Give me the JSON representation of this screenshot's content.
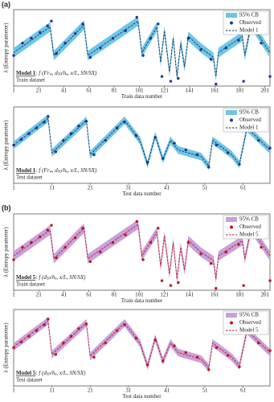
{
  "panel_labels": [
    "(a)",
    "(b)"
  ],
  "chart_data": [
    {
      "type": "line",
      "y_label": "λ (Entropy parameter)",
      "x_label": "Train data number",
      "annotation": {
        "model": "Model 1",
        "formula": [
          ": f (Fr",
          "w",
          ", d",
          "50",
          "/h",
          "s",
          ", x/L, SN/SX)"
        ],
        "dataset": "Train dataset"
      },
      "xlim": [
        1,
        205
      ],
      "xticks": [
        1,
        21,
        41,
        61,
        81,
        101,
        121,
        141,
        161,
        181,
        201
      ],
      "ylim": [
        0.1,
        0.9
      ],
      "legend": "upper right",
      "series": [
        {
          "name": "95% CB",
          "kind": "band",
          "color": "#6ec6e6",
          "x": [
            1,
            30,
            33,
            57,
            60,
            100,
            103,
            115,
            118,
            121,
            125,
            128,
            131,
            134,
            137,
            140,
            150,
            160,
            162,
            164,
            183,
            185,
            190,
            205
          ],
          "lower": [
            0.4,
            0.67,
            0.37,
            0.69,
            0.37,
            0.73,
            0.4,
            0.67,
            0.3,
            0.63,
            0.2,
            0.55,
            0.15,
            0.5,
            0.25,
            0.57,
            0.45,
            0.35,
            0.15,
            0.4,
            0.57,
            0.37,
            0.7,
            0.4
          ],
          "upper": [
            0.5,
            0.77,
            0.47,
            0.79,
            0.47,
            0.83,
            0.5,
            0.77,
            0.4,
            0.73,
            0.3,
            0.65,
            0.25,
            0.6,
            0.35,
            0.67,
            0.55,
            0.45,
            0.25,
            0.5,
            0.67,
            0.47,
            0.8,
            0.5
          ]
        },
        {
          "name": "Observed",
          "kind": "scatter",
          "color": "#1f3a93",
          "x": [
            1,
            8,
            15,
            22,
            28,
            31,
            35,
            42,
            50,
            56,
            62,
            70,
            80,
            90,
            99,
            104,
            110,
            116,
            119,
            126,
            132,
            140,
            150,
            158,
            162,
            170,
            180,
            184,
            190,
            198,
            205
          ],
          "values": [
            0.42,
            0.55,
            0.6,
            0.66,
            0.73,
            0.78,
            0.44,
            0.55,
            0.65,
            0.75,
            0.4,
            0.5,
            0.6,
            0.68,
            0.82,
            0.42,
            0.6,
            0.75,
            0.2,
            0.15,
            0.18,
            0.6,
            0.48,
            0.38,
            0.12,
            0.5,
            0.58,
            0.15,
            0.78,
            0.55,
            0.2
          ]
        },
        {
          "name": "Model 1",
          "kind": "line",
          "color": "#1a2a5a",
          "dash": true,
          "x": [
            1,
            30,
            33,
            57,
            60,
            100,
            103,
            115,
            118,
            121,
            125,
            128,
            131,
            134,
            137,
            140,
            150,
            160,
            162,
            164,
            183,
            185,
            190,
            205
          ],
          "values": [
            0.45,
            0.72,
            0.42,
            0.74,
            0.42,
            0.78,
            0.45,
            0.72,
            0.35,
            0.68,
            0.25,
            0.6,
            0.2,
            0.55,
            0.3,
            0.62,
            0.5,
            0.4,
            0.2,
            0.45,
            0.62,
            0.42,
            0.75,
            0.45
          ]
        }
      ]
    },
    {
      "type": "line",
      "y_label": "λ (Entropy parameter)",
      "x_label": "Test data number",
      "annotation": {
        "model": "Model 1",
        "formula": [
          ": f (Fr",
          "w",
          ", d",
          "50",
          "/h",
          "s",
          ", x/L, SN/SX)"
        ],
        "dataset": "Test dataset"
      },
      "xlim": [
        1,
        68
      ],
      "xticks": [
        1,
        11,
        21,
        31,
        41,
        51,
        61
      ],
      "ylim": [
        0.1,
        0.9
      ],
      "legend": "upper right",
      "series": [
        {
          "name": "95% CB",
          "kind": "band",
          "color": "#6ec6e6",
          "x": [
            1,
            10,
            11,
            20,
            21,
            30,
            34,
            36,
            38,
            40,
            42,
            44,
            50,
            52,
            53,
            58,
            60,
            62,
            68
          ],
          "lower": [
            0.46,
            0.74,
            0.38,
            0.72,
            0.36,
            0.72,
            0.51,
            0.26,
            0.56,
            0.31,
            0.51,
            0.41,
            0.34,
            0.24,
            0.51,
            0.36,
            0.26,
            0.64,
            0.41
          ],
          "upper": [
            0.54,
            0.82,
            0.46,
            0.8,
            0.44,
            0.8,
            0.59,
            0.34,
            0.64,
            0.39,
            0.59,
            0.49,
            0.42,
            0.32,
            0.59,
            0.44,
            0.34,
            0.72,
            0.49
          ]
        },
        {
          "name": "Observed",
          "kind": "scatter",
          "color": "#1f3a93",
          "x": [
            1,
            3,
            5,
            7,
            9,
            10,
            12,
            14,
            16,
            18,
            20,
            22,
            25,
            28,
            30,
            33,
            36,
            38,
            40,
            43,
            46,
            49,
            52,
            54,
            57,
            60,
            62,
            65,
            68
          ],
          "values": [
            0.5,
            0.56,
            0.62,
            0.68,
            0.74,
            0.8,
            0.43,
            0.55,
            0.62,
            0.7,
            0.75,
            0.4,
            0.55,
            0.68,
            0.74,
            0.6,
            0.32,
            0.58,
            0.36,
            0.52,
            0.45,
            0.4,
            0.27,
            0.5,
            0.42,
            0.3,
            0.68,
            0.55,
            0.47
          ]
        },
        {
          "name": "Model 1",
          "kind": "line",
          "color": "#1a2a5a",
          "dash": true,
          "x": [
            1,
            10,
            11,
            20,
            21,
            30,
            34,
            36,
            38,
            40,
            42,
            44,
            50,
            52,
            53,
            58,
            60,
            62,
            68
          ],
          "values": [
            0.5,
            0.78,
            0.42,
            0.76,
            0.4,
            0.76,
            0.55,
            0.3,
            0.6,
            0.35,
            0.55,
            0.45,
            0.38,
            0.28,
            0.55,
            0.4,
            0.3,
            0.68,
            0.45
          ]
        }
      ]
    },
    {
      "type": "line",
      "y_label": "λ (Entropy parameter)",
      "x_label": "Train data number",
      "annotation": {
        "model": "Model 5",
        "formula": [
          ": f (d",
          "50",
          "/h",
          "s",
          ", x/L, SN/SX)"
        ],
        "dataset": "Train dataset"
      },
      "xlim": [
        1,
        205
      ],
      "xticks": [
        1,
        21,
        41,
        61,
        81,
        101,
        121,
        141,
        161,
        181,
        201
      ],
      "ylim": [
        0.1,
        0.9
      ],
      "legend": "upper right",
      "series": [
        {
          "name": "95% CB",
          "kind": "band",
          "color": "#c9a0dc",
          "x": [
            1,
            30,
            33,
            57,
            60,
            100,
            103,
            115,
            118,
            121,
            125,
            128,
            131,
            134,
            137,
            140,
            150,
            160,
            162,
            164,
            183,
            185,
            190,
            205
          ],
          "lower": [
            0.41,
            0.68,
            0.38,
            0.7,
            0.38,
            0.74,
            0.41,
            0.66,
            0.3,
            0.62,
            0.22,
            0.55,
            0.17,
            0.5,
            0.26,
            0.57,
            0.45,
            0.36,
            0.17,
            0.41,
            0.57,
            0.38,
            0.7,
            0.41
          ],
          "upper": [
            0.51,
            0.78,
            0.48,
            0.8,
            0.48,
            0.84,
            0.51,
            0.76,
            0.4,
            0.72,
            0.32,
            0.65,
            0.27,
            0.6,
            0.36,
            0.67,
            0.55,
            0.46,
            0.27,
            0.51,
            0.67,
            0.48,
            0.8,
            0.51
          ]
        },
        {
          "name": "Observed",
          "kind": "scatter",
          "color": "#c0161e",
          "x": [
            1,
            8,
            15,
            22,
            28,
            31,
            35,
            42,
            50,
            56,
            62,
            70,
            80,
            90,
            99,
            104,
            110,
            116,
            119,
            126,
            132,
            140,
            150,
            158,
            162,
            170,
            180,
            184,
            190,
            198,
            205
          ],
          "values": [
            0.42,
            0.55,
            0.6,
            0.66,
            0.73,
            0.78,
            0.44,
            0.55,
            0.65,
            0.75,
            0.4,
            0.5,
            0.6,
            0.68,
            0.82,
            0.42,
            0.6,
            0.75,
            0.2,
            0.15,
            0.18,
            0.6,
            0.48,
            0.38,
            0.12,
            0.5,
            0.58,
            0.15,
            0.78,
            0.55,
            0.2
          ]
        },
        {
          "name": "Model 5",
          "kind": "line",
          "color": "#c0161e",
          "dash": true,
          "x": [
            1,
            30,
            33,
            57,
            60,
            100,
            103,
            115,
            118,
            121,
            125,
            128,
            131,
            134,
            137,
            140,
            150,
            160,
            162,
            164,
            183,
            185,
            190,
            205
          ],
          "values": [
            0.46,
            0.73,
            0.43,
            0.75,
            0.43,
            0.79,
            0.46,
            0.71,
            0.35,
            0.67,
            0.27,
            0.6,
            0.22,
            0.55,
            0.31,
            0.62,
            0.5,
            0.41,
            0.22,
            0.46,
            0.62,
            0.43,
            0.75,
            0.46
          ]
        }
      ]
    },
    {
      "type": "line",
      "y_label": "λ (Entropy parameter)",
      "x_label": "Test data number",
      "annotation": {
        "model": "Model 5",
        "formula": [
          ": f (d",
          "50",
          "/h",
          "s",
          ", x/L, SN/SX)"
        ],
        "dataset": "Test dataset"
      },
      "xlim": [
        1,
        68
      ],
      "xticks": [
        1,
        11,
        21,
        31,
        41,
        51,
        61
      ],
      "ylim": [
        0.1,
        0.9
      ],
      "legend": "upper right",
      "series": [
        {
          "name": "95% CB",
          "kind": "band",
          "color": "#c9a0dc",
          "x": [
            1,
            10,
            11,
            20,
            21,
            30,
            34,
            36,
            38,
            40,
            42,
            44,
            50,
            52,
            53,
            58,
            60,
            62,
            68
          ],
          "lower": [
            0.47,
            0.74,
            0.39,
            0.72,
            0.37,
            0.72,
            0.51,
            0.27,
            0.56,
            0.32,
            0.51,
            0.41,
            0.34,
            0.25,
            0.51,
            0.36,
            0.27,
            0.64,
            0.41
          ],
          "upper": [
            0.55,
            0.82,
            0.47,
            0.8,
            0.45,
            0.8,
            0.59,
            0.35,
            0.64,
            0.4,
            0.59,
            0.49,
            0.42,
            0.33,
            0.59,
            0.44,
            0.35,
            0.72,
            0.49
          ]
        },
        {
          "name": "Observed",
          "kind": "scatter",
          "color": "#c0161e",
          "x": [
            1,
            3,
            5,
            7,
            9,
            10,
            12,
            14,
            16,
            18,
            20,
            22,
            25,
            28,
            30,
            33,
            36,
            38,
            40,
            43,
            46,
            49,
            52,
            54,
            57,
            60,
            62,
            65,
            68
          ],
          "values": [
            0.5,
            0.56,
            0.62,
            0.68,
            0.74,
            0.8,
            0.43,
            0.55,
            0.62,
            0.7,
            0.75,
            0.4,
            0.55,
            0.68,
            0.74,
            0.6,
            0.32,
            0.58,
            0.36,
            0.52,
            0.45,
            0.4,
            0.27,
            0.5,
            0.42,
            0.3,
            0.68,
            0.55,
            0.47
          ]
        },
        {
          "name": "Model 5",
          "kind": "line",
          "color": "#c0161e",
          "dash": true,
          "x": [
            1,
            10,
            11,
            20,
            21,
            30,
            34,
            36,
            38,
            40,
            42,
            44,
            50,
            52,
            53,
            58,
            60,
            62,
            68
          ],
          "values": [
            0.51,
            0.78,
            0.43,
            0.76,
            0.41,
            0.76,
            0.55,
            0.31,
            0.6,
            0.36,
            0.55,
            0.45,
            0.38,
            0.29,
            0.55,
            0.4,
            0.31,
            0.68,
            0.45
          ]
        }
      ]
    }
  ]
}
